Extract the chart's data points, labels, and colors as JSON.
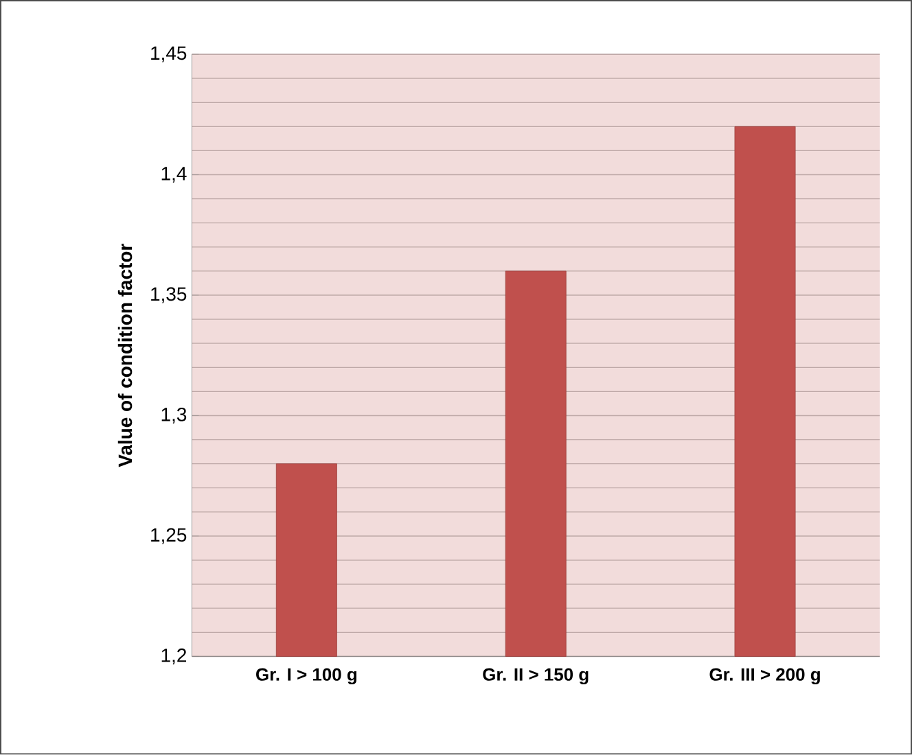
{
  "chart_data": {
    "type": "bar",
    "ylabel": "Value of condition factor",
    "categories": [
      "Gr. I > 100 g",
      "Gr. II > 150 g",
      "Gr. III > 200 g"
    ],
    "values": [
      1.28,
      1.36,
      1.42
    ],
    "color": "#c0504d",
    "ylim": [
      1.2,
      1.45
    ],
    "yticks": [
      {
        "value": 1.2,
        "label": "1,2"
      },
      {
        "value": 1.25,
        "label": "1,25"
      },
      {
        "value": 1.3,
        "label": "1,3"
      },
      {
        "value": 1.35,
        "label": "1,35"
      },
      {
        "value": 1.4,
        "label": "1,4"
      },
      {
        "value": 1.45,
        "label": "1,45"
      }
    ],
    "grid": "y"
  }
}
